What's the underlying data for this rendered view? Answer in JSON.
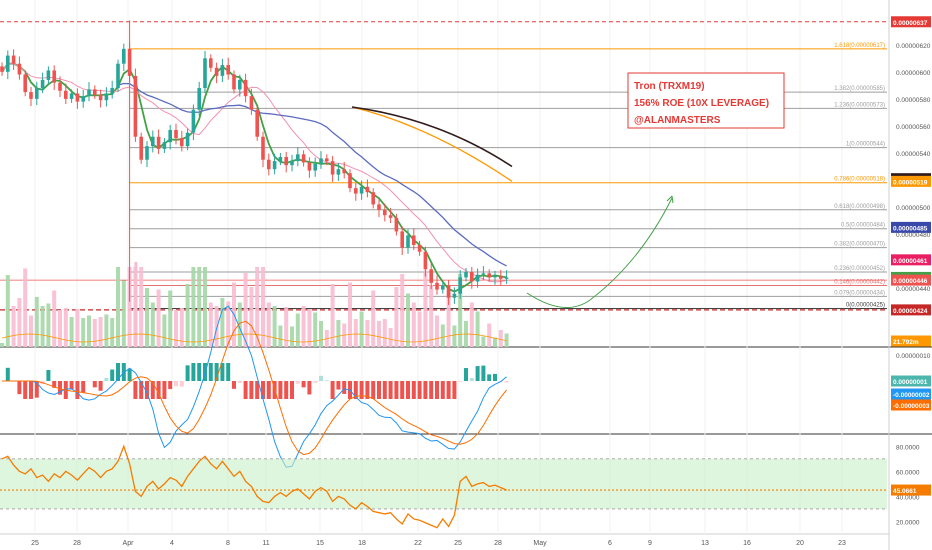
{
  "annotation": {
    "lines": [
      "Tron (TRXM19)",
      "156% ROE (10X LEVERAGE)",
      "@ALANMASTERS"
    ],
    "color": "#e53935"
  },
  "colors": {
    "up": "#26a69a",
    "down": "#ef5350",
    "ma_short": "#43a047",
    "ma_pink": "#f48fb1",
    "ma_blue": "#5c6bc0",
    "ma_orange": "#ff9800",
    "ma_black": "#311b1b",
    "fib_gray": "#9e9e9e",
    "fib_orange": "#ff9800",
    "macd": "#2196f3",
    "signal": "#ff6d00",
    "rsi": "#f57c00",
    "rsi_band": "#c8f0c8",
    "projection": "#43a047"
  },
  "chart_data": [
    {
      "type": "line",
      "panel": "price",
      "symbol": "TRXM19",
      "x_ticks": [
        "25",
        "28",
        "Apr",
        "4",
        "8",
        "11",
        "15",
        "18",
        "22",
        "25",
        "28",
        "May",
        "6",
        "9",
        "13",
        "16",
        "20",
        "23"
      ],
      "y_ticks": [
        "0.00000620",
        "0.00000600",
        "0.00000580",
        "0.00000560",
        "0.00000540",
        "0.00000520",
        "0.00000500",
        "0.00000480",
        "0.00000460",
        "0.00000440"
      ],
      "ylim": [
        4.18e-06,
        6.42e-06
      ],
      "price_tags": [
        {
          "label": "0.00000637",
          "value": 6.37e-06,
          "color": "#e53935"
        },
        {
          "label": "0.00000521",
          "value": 5.21e-06,
          "color": "#311b1b"
        },
        {
          "label": "0.00000519",
          "value": 5.19e-06,
          "color": "#ff9800"
        },
        {
          "label": "0.00000485",
          "value": 4.85e-06,
          "color": "#3949ab"
        },
        {
          "label": "0.00000461",
          "value": 4.61e-06,
          "color": "#e91e63"
        },
        {
          "label": "0.00000448",
          "value": 4.48e-06,
          "color": "#43a047"
        },
        {
          "label": "0.00000446",
          "value": 4.46e-06,
          "color": "#ef5350"
        },
        {
          "label": "0.00000424",
          "value": 4.24e-06,
          "color": "#c62828"
        }
      ],
      "fib_levels": [
        {
          "label": "1.618(0.00000617)",
          "value": 6.17e-06,
          "color": "#ff9800"
        },
        {
          "label": "1.382(0.00000585)",
          "value": 5.85e-06,
          "color": "#9e9e9e"
        },
        {
          "label": "1.236(0.00000573)",
          "value": 5.73e-06,
          "color": "#9e9e9e"
        },
        {
          "label": "1(0.00000544)",
          "value": 5.44e-06,
          "color": "#9e9e9e"
        },
        {
          "label": "0.786(0.00000518)",
          "value": 5.18e-06,
          "color": "#ff9800"
        },
        {
          "label": "0.618(0.00000498)",
          "value": 4.98e-06,
          "color": "#9e9e9e"
        },
        {
          "label": "0.5(0.00000484)",
          "value": 4.84e-06,
          "color": "#9e9e9e"
        },
        {
          "label": "0.382(0.00000470)",
          "value": 4.7e-06,
          "color": "#9e9e9e"
        },
        {
          "label": "0.236(0.00000452)",
          "value": 4.52e-06,
          "color": "#9e9e9e"
        },
        {
          "label": "0.146(0.00000442)",
          "value": 4.42e-06,
          "color": "#e57373"
        },
        {
          "label": "0.079(0.00000434)",
          "value": 4.34e-06,
          "color": "#9e9e9e"
        },
        {
          "label": "0(0.00000425)",
          "value": 4.25e-06,
          "color": "#424242"
        }
      ],
      "close_series": [
        6e-06,
        6.12e-06,
        6.06e-06,
        5.98e-06,
        5.85e-06,
        5.8e-06,
        5.88e-06,
        5.94e-06,
        6.01e-06,
        5.92e-06,
        5.86e-06,
        5.8e-06,
        5.84e-06,
        5.78e-06,
        5.82e-06,
        5.87e-06,
        5.83e-06,
        5.79e-06,
        5.84e-06,
        5.88e-06,
        6.06e-06,
        6.17e-06,
        5.97e-06,
        5.52e-06,
        5.35e-06,
        5.45e-06,
        5.52e-06,
        5.43e-06,
        5.48e-06,
        5.57e-06,
        5.51e-06,
        5.45e-06,
        5.55e-06,
        5.72e-06,
        5.88e-06,
        6.1e-06,
        6.03e-06,
        5.97e-06,
        6.05e-06,
        5.98e-06,
        5.87e-06,
        5.94e-06,
        5.82e-06,
        5.72e-06,
        5.52e-06,
        5.35e-06,
        5.28e-06,
        5.34e-06,
        5.37e-06,
        5.31e-06,
        5.34e-06,
        5.39e-06,
        5.33e-06,
        5.27e-06,
        5.32e-06,
        5.36e-06,
        5.34e-06,
        5.24e-06,
        5.28e-06,
        5.25e-06,
        5.14e-06,
        5.1e-06,
        5.15e-06,
        5.11e-06,
        5.02e-06,
        4.98e-06,
        4.94e-06,
        4.92e-06,
        4.82e-06,
        4.7e-06,
        4.79e-06,
        4.72e-06,
        4.67e-06,
        4.54e-06,
        4.44e-06,
        4.39e-06,
        4.42e-06,
        4.33e-06,
        4.36e-06,
        4.48e-06,
        4.52e-06,
        4.45e-06,
        4.5e-06,
        4.51e-06,
        4.48e-06,
        4.49e-06,
        4.47e-06,
        4.48e-06
      ]
    },
    {
      "type": "bar",
      "panel": "volume",
      "label": "21.792m"
    },
    {
      "type": "line",
      "panel": "macd",
      "y_ticks": [
        "0.00000010"
      ],
      "tags": [
        {
          "label": "0.00000001",
          "value": 1e-08,
          "color": "#4db6ac"
        },
        {
          "label": "-0.00000002",
          "value": -2e-08,
          "color": "#2196f3"
        },
        {
          "label": "-0.00000003",
          "value": -3e-08,
          "color": "#ff6d00"
        }
      ]
    },
    {
      "type": "line",
      "panel": "rsi",
      "y_ticks": [
        "80.0000",
        "60.0000",
        "40.0000",
        "20.0000"
      ],
      "ylim": [
        10,
        85
      ],
      "band": [
        30,
        70
      ],
      "value_tag": "45.0661",
      "value": 45.0661,
      "series": [
        70,
        72,
        65,
        60,
        58,
        62,
        55,
        57,
        52,
        58,
        55,
        60,
        57,
        53,
        58,
        63,
        60,
        55,
        60,
        62,
        68,
        80,
        66,
        44,
        40,
        48,
        52,
        46,
        50,
        55,
        53,
        48,
        56,
        62,
        68,
        72,
        66,
        62,
        68,
        62,
        56,
        60,
        52,
        48,
        40,
        36,
        35,
        40,
        43,
        40,
        44,
        46,
        42,
        38,
        44,
        47,
        44,
        36,
        40,
        38,
        33,
        30,
        35,
        32,
        28,
        27,
        26,
        27,
        22,
        18,
        26,
        22,
        21,
        19,
        17,
        15,
        22,
        16,
        25,
        52,
        56,
        48,
        50,
        51,
        48,
        49,
        47,
        45
      ]
    }
  ]
}
